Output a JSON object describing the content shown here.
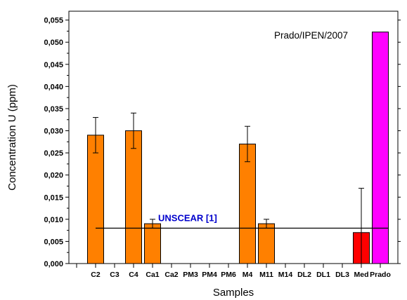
{
  "chart_data": {
    "type": "bar",
    "xlabel": "Samples",
    "ylabel": "Concentration U (ppm)",
    "ylim": [
      0,
      0.057
    ],
    "yticks": [
      "0,000",
      "0,005",
      "0,010",
      "0,015",
      "0,020",
      "0,025",
      "0,030",
      "0,035",
      "0,040",
      "0,045",
      "0,050",
      "0,055"
    ],
    "categories": [
      "C2",
      "C3",
      "C4",
      "Ca1",
      "Ca2",
      "PM3",
      "PM4",
      "PM6",
      "M4",
      "M11",
      "M14",
      "DL2",
      "DL1",
      "DL3",
      "Med",
      "Prado"
    ],
    "values": [
      0.029,
      null,
      0.03,
      0.009,
      null,
      null,
      null,
      null,
      0.027,
      0.009,
      null,
      null,
      null,
      null,
      0.007,
      0.0523
    ],
    "errors": [
      0.004,
      null,
      0.004,
      0.001,
      null,
      null,
      null,
      null,
      0.004,
      0.001,
      null,
      null,
      null,
      null,
      0.01,
      null
    ],
    "bar_colors": [
      "#ff8000",
      "#ff8000",
      "#ff8000",
      "#ff8000",
      "#ff8000",
      "#ff8000",
      "#ff8000",
      "#ff8000",
      "#ff8000",
      "#ff8000",
      "#ff8000",
      "#ff8000",
      "#ff8000",
      "#ff8000",
      "#ff0000",
      "#ff00ff"
    ],
    "reference_line": {
      "value": 0.008,
      "label": "UNSCEAR  [1]",
      "label_color": "#0000cc"
    },
    "annotation": "Prado/IPEN/2007",
    "grid": false
  }
}
